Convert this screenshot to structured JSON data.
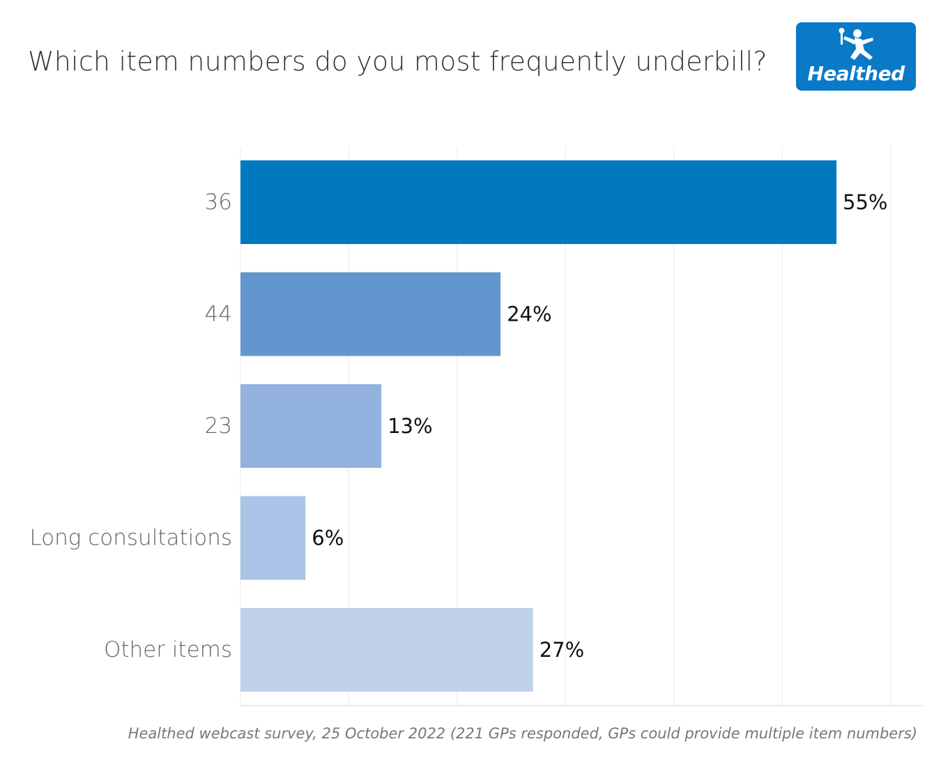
{
  "title": "Which item numbers do you most frequently underbill?",
  "logo": {
    "text": "Healthed",
    "icon": "running-figure-icon",
    "color": "#0a7ac8"
  },
  "footnote": "Healthed webcast survey, 25 October 2022 (221 GPs responded, GPs could provide multiple item numbers)",
  "chart_data": {
    "type": "bar",
    "orientation": "horizontal",
    "title": "Which item numbers do you most frequently underbill?",
    "xlabel": "",
    "ylabel": "",
    "categories": [
      "36",
      "44",
      "23",
      "Long consultations",
      "Other items"
    ],
    "values": [
      55,
      24,
      13,
      6,
      27
    ],
    "value_labels": [
      "55%",
      "24%",
      "13%",
      "6%",
      "27%"
    ],
    "colors": [
      "#0079c1",
      "#6396ce",
      "#93b2de",
      "#abc3e6",
      "#bfd2ea"
    ],
    "xlim": [
      0,
      63
    ],
    "grid": true,
    "legend": "none"
  }
}
